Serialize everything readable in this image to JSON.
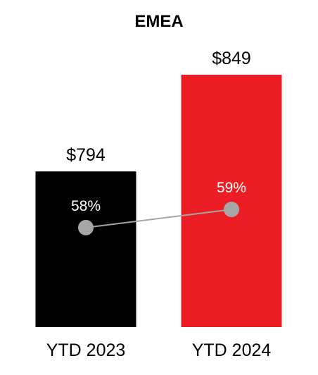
{
  "chart_data": {
    "type": "bar",
    "title": "EMEA",
    "categories": [
      "YTD 2023",
      "YTD 2024"
    ],
    "values": [
      794,
      849
    ],
    "value_labels": [
      "$794",
      "$849"
    ],
    "bar_colors": [
      "#000000",
      "#ec1c24"
    ],
    "overlay_series": {
      "type": "line",
      "values": [
        58,
        59
      ],
      "labels": [
        "58%",
        "59%"
      ],
      "marker_color": "#a6a6a6",
      "line_color": "#a6a6a6"
    },
    "xlabel": "",
    "ylabel": "",
    "grid": false
  }
}
